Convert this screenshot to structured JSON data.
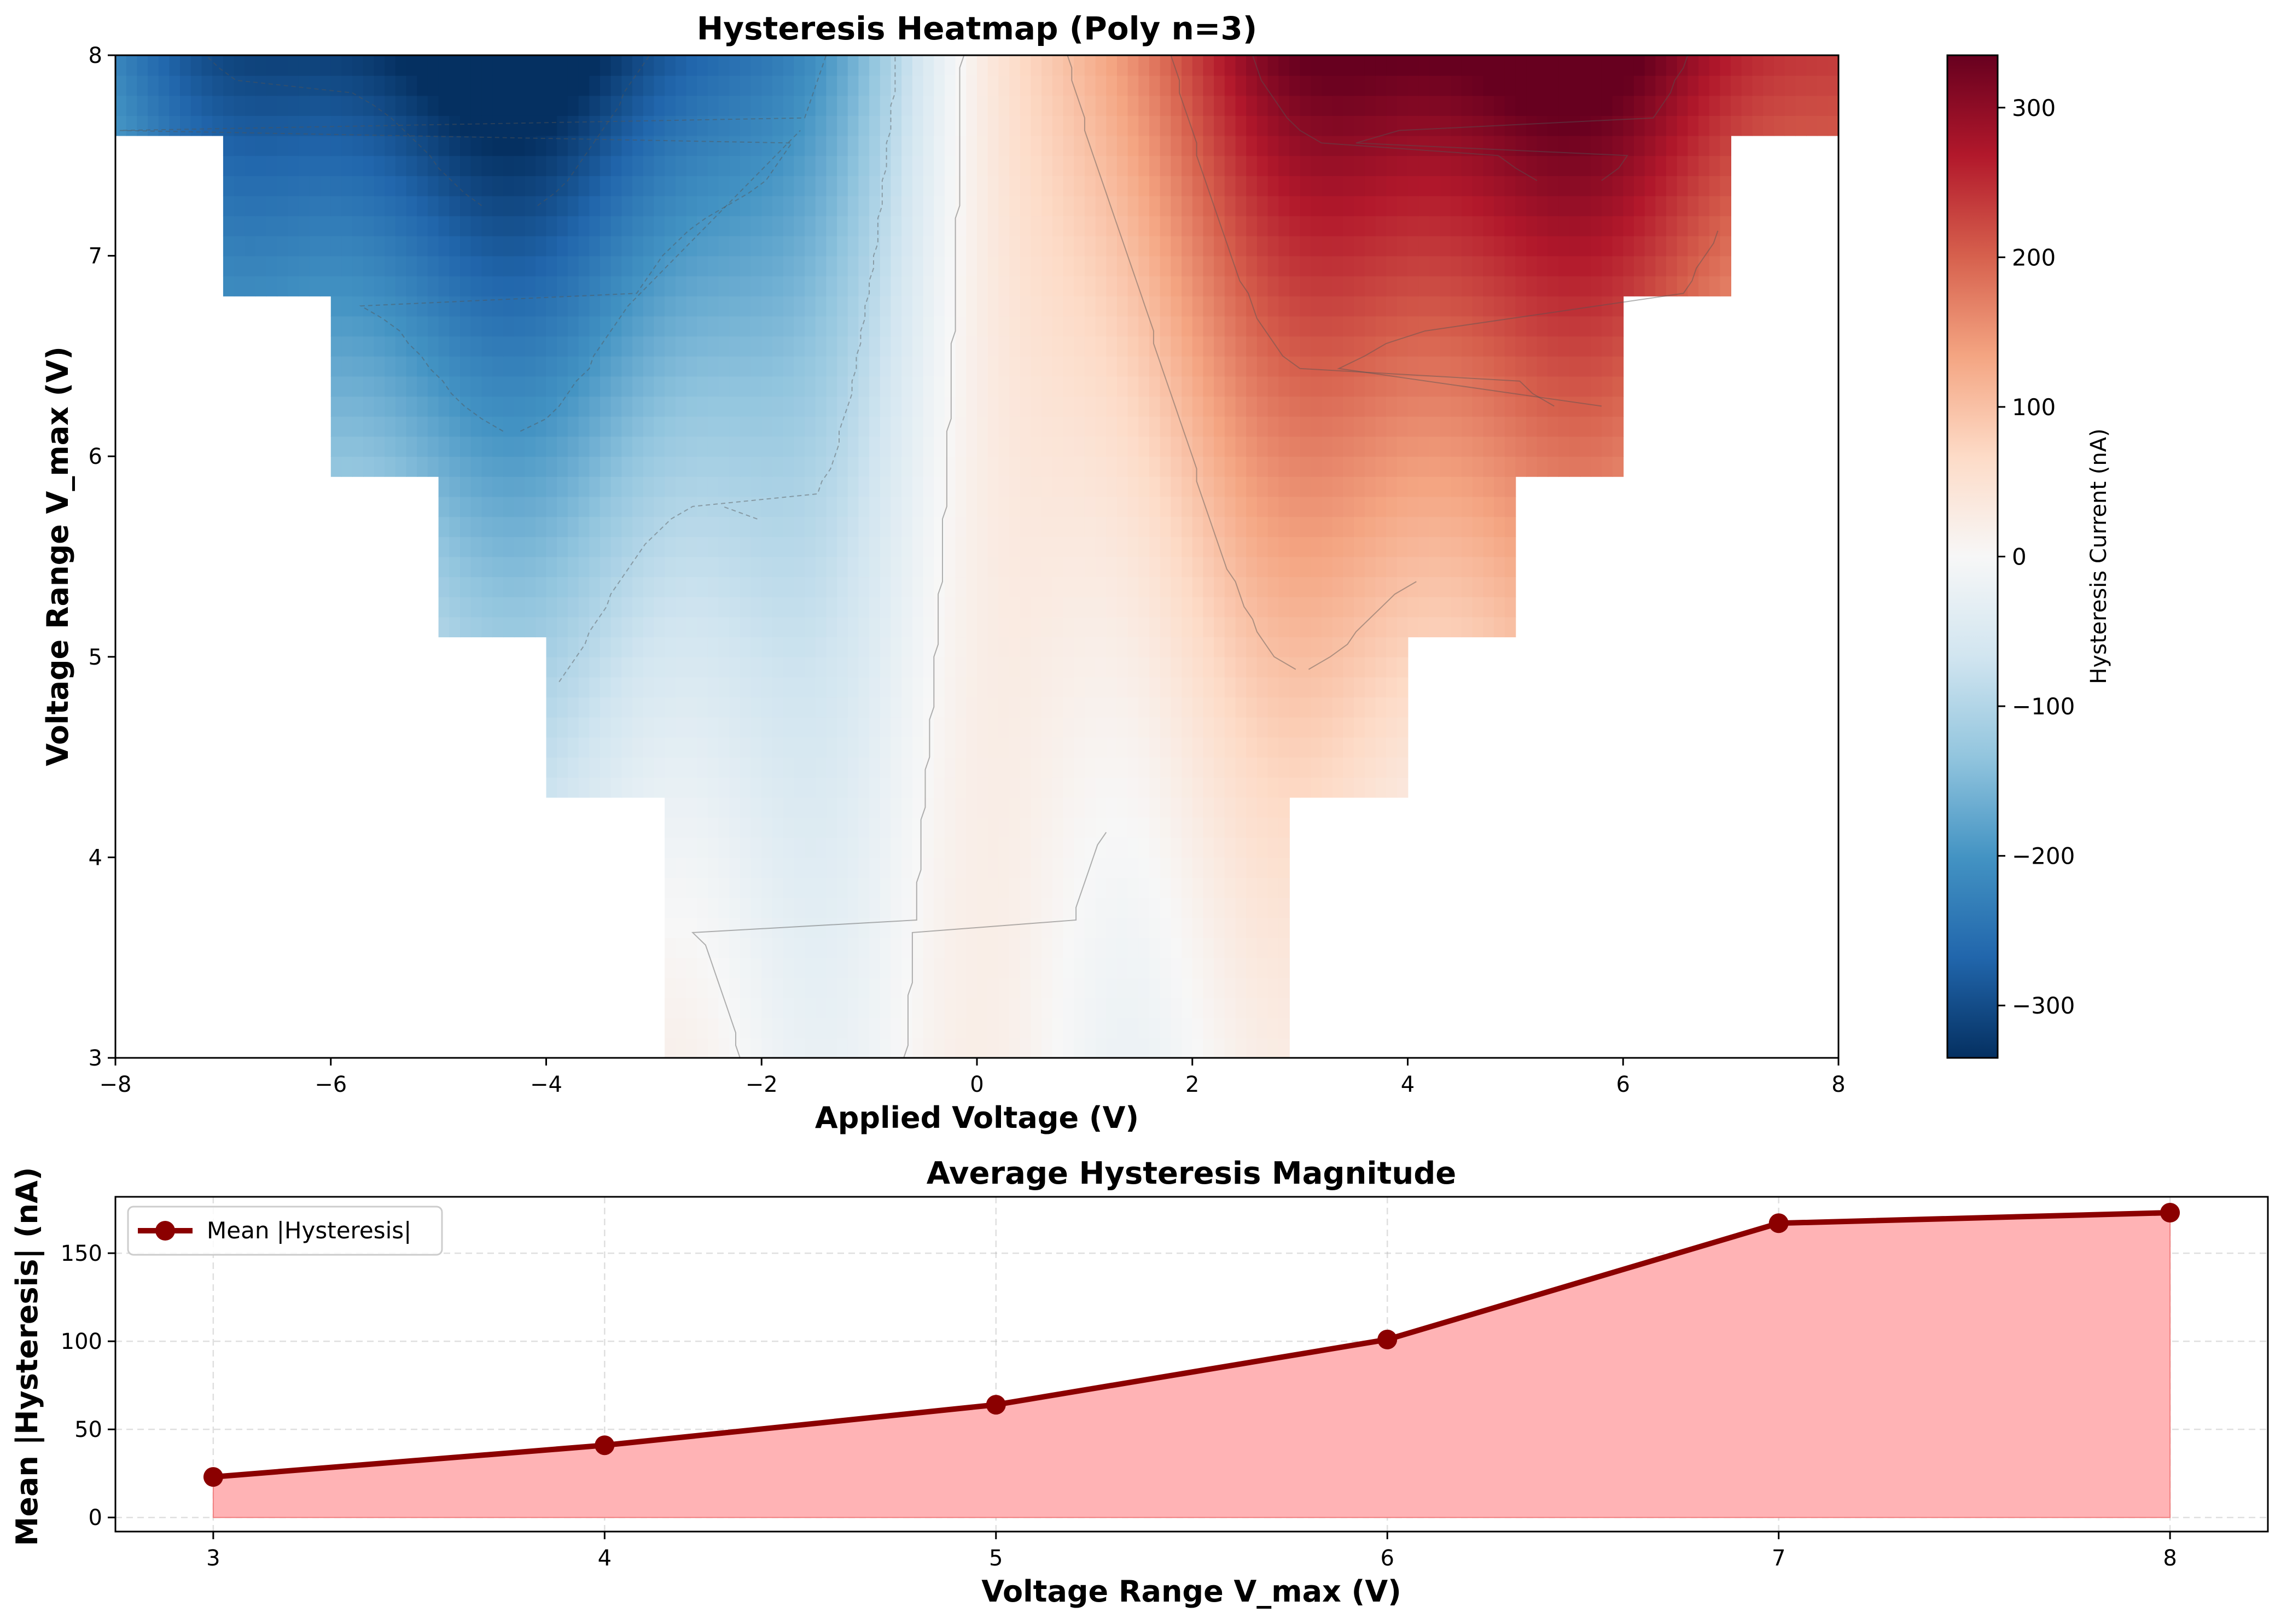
{
  "chart_data": [
    {
      "type": "heatmap",
      "title": "Hysteresis Heatmap (Poly n=3)",
      "xlabel": "Applied Voltage (V)",
      "ylabel": "Voltage Range V_max (V)",
      "xlim": [
        -8,
        8
      ],
      "ylim": [
        3,
        8
      ],
      "xticks": [
        -8,
        -6,
        -4,
        -2,
        0,
        2,
        4,
        6,
        8
      ],
      "xtick_labels": [
        "−8",
        "−6",
        "−4",
        "−2",
        "0",
        "2",
        "4",
        "6",
        "8"
      ],
      "yticks": [
        3,
        4,
        5,
        6,
        7,
        8
      ],
      "ytick_labels": [
        "3",
        "4",
        "5",
        "6",
        "7",
        "8"
      ],
      "colormap": "RdBu_r",
      "colorbar": {
        "label": "Hysteresis Current (nA)",
        "range": [
          -335,
          335
        ],
        "ticks": [
          -300,
          -200,
          -100,
          0,
          100,
          200,
          300
        ],
        "tick_labels": [
          "−300",
          "−200",
          "−100",
          "0",
          "100",
          "200",
          "300"
        ]
      },
      "valid_region_half_width_by_row": [
        {
          "v_max_from": 3.0,
          "v_max_to": 4.25,
          "half_width": 2.9
        },
        {
          "v_max_from": 4.25,
          "v_max_to": 5.08,
          "half_width": 3.95
        },
        {
          "v_max_from": 5.08,
          "v_max_to": 5.92,
          "half_width": 4.95
        },
        {
          "v_max_from": 5.92,
          "v_max_to": 6.75,
          "half_width": 5.95
        },
        {
          "v_max_from": 6.75,
          "v_max_to": 7.58,
          "half_width": 6.95
        },
        {
          "v_max_from": 7.58,
          "v_max_to": 8.0,
          "half_width": 8.0
        }
      ],
      "extremes": [
        {
          "applied_voltage": -4.6,
          "v_max": 7.6,
          "value": -320
        },
        {
          "applied_voltage": 5.3,
          "v_max": 7.6,
          "value": 320
        }
      ],
      "contour_levels": [
        -300,
        -200,
        -100,
        0,
        100,
        200,
        300
      ]
    },
    {
      "type": "area",
      "title": "Average Hysteresis Magnitude",
      "xlabel": "Voltage Range V_max (V)",
      "ylabel": "Mean |Hysteresis| (nA)",
      "xlim": [
        2.75,
        8.25
      ],
      "ylim": [
        -8,
        182
      ],
      "xticks": [
        3,
        4,
        5,
        6,
        7,
        8
      ],
      "yticks": [
        0,
        50,
        100,
        150
      ],
      "grid": true,
      "legend_position": "top-left",
      "series": [
        {
          "name": "Mean |Hysteresis|",
          "x": [
            3,
            4,
            5,
            6,
            7,
            8
          ],
          "values": [
            23,
            41,
            64,
            101,
            167,
            173
          ],
          "line_color": "#8b0000",
          "fill_color": "#ffb3b5"
        }
      ]
    }
  ]
}
